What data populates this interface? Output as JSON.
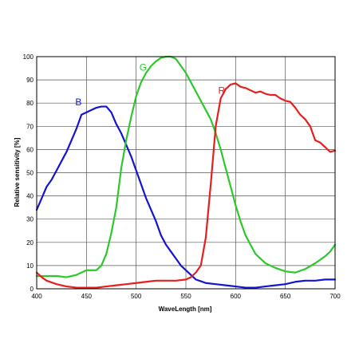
{
  "chart_data": {
    "type": "line",
    "title": "",
    "xlabel": "WaveLength [nm]",
    "ylabel": "Relative sensitivity [%]",
    "xlim": [
      400,
      700
    ],
    "ylim": [
      0,
      100
    ],
    "xticks": [
      400,
      450,
      500,
      550,
      600,
      650,
      700
    ],
    "xtick_labels": [
      "400",
      "450",
      "500",
      "550",
      "600",
      "650",
      "700"
    ],
    "yticks": [
      0,
      10,
      20,
      30,
      40,
      50,
      60,
      70,
      80,
      90,
      100
    ],
    "ytick_labels": [
      "0",
      "10",
      "20",
      "30",
      "40",
      "50",
      "60",
      "70",
      "80",
      "90",
      "100"
    ],
    "grid": true,
    "legend": "none",
    "series": [
      {
        "name": "B",
        "color": "#1414d2",
        "label_at": [
          442,
          79
        ],
        "x": [
          400,
          405,
          410,
          415,
          420,
          425,
          430,
          435,
          440,
          445,
          450,
          455,
          460,
          465,
          470,
          475,
          480,
          485,
          490,
          495,
          500,
          505,
          510,
          515,
          520,
          525,
          530,
          535,
          540,
          545,
          550,
          555,
          560,
          570,
          580,
          590,
          600,
          610,
          620,
          630,
          640,
          650,
          660,
          670,
          680,
          690,
          700
        ],
        "y": [
          34,
          39,
          44,
          47,
          51,
          55,
          59,
          64,
          69,
          75,
          76,
          77,
          78,
          78.5,
          78.5,
          76,
          71,
          67,
          62,
          57,
          51,
          45,
          39,
          34,
          29,
          23,
          19,
          16,
          13,
          10,
          8,
          6,
          4,
          2.5,
          2,
          1.5,
          1,
          0.5,
          0.5,
          1,
          1.5,
          2,
          3,
          3.5,
          3.5,
          4,
          4
        ]
      },
      {
        "name": "G",
        "color": "#2dc82d",
        "label_at": [
          507,
          94
        ],
        "x": [
          400,
          410,
          420,
          430,
          440,
          445,
          450,
          455,
          460,
          465,
          470,
          475,
          480,
          485,
          490,
          495,
          500,
          505,
          510,
          515,
          520,
          525,
          530,
          535,
          540,
          545,
          550,
          555,
          560,
          565,
          570,
          575,
          580,
          585,
          590,
          595,
          600,
          605,
          610,
          615,
          620,
          625,
          630,
          640,
          650,
          660,
          670,
          680,
          690,
          695,
          700
        ],
        "y": [
          5.5,
          5.5,
          5.5,
          5,
          6,
          7,
          8,
          8,
          8,
          10,
          15,
          24,
          35,
          52,
          64,
          74,
          83,
          89,
          93,
          96,
          98,
          99.5,
          100,
          100,
          99,
          96,
          93,
          89,
          85,
          81,
          77,
          73,
          67,
          60,
          52,
          44,
          36,
          29,
          23,
          19,
          15,
          13,
          11,
          9,
          7.5,
          7,
          8.5,
          11,
          14,
          16,
          19
        ]
      },
      {
        "name": "R",
        "color": "#e61e1e",
        "label_at": [
          586,
          84
        ],
        "x": [
          400,
          405,
          410,
          420,
          430,
          440,
          450,
          460,
          470,
          480,
          490,
          500,
          510,
          520,
          530,
          540,
          550,
          555,
          560,
          565,
          570,
          575,
          580,
          585,
          590,
          595,
          600,
          605,
          610,
          615,
          620,
          625,
          630,
          635,
          640,
          645,
          650,
          655,
          660,
          665,
          670,
          675,
          680,
          685,
          690,
          695,
          700
        ],
        "y": [
          7,
          5,
          3.5,
          2,
          1,
          0.5,
          0.5,
          0.5,
          1,
          1.5,
          2,
          2.5,
          3,
          3.5,
          3.5,
          3.5,
          4,
          5,
          7,
          10,
          22,
          45,
          70,
          82,
          86,
          88,
          88.5,
          87,
          86.5,
          85.5,
          84.5,
          85,
          84,
          83.5,
          83.5,
          82,
          81,
          80.5,
          78,
          75,
          73,
          70,
          64,
          63,
          61,
          59,
          59.5
        ]
      }
    ]
  }
}
